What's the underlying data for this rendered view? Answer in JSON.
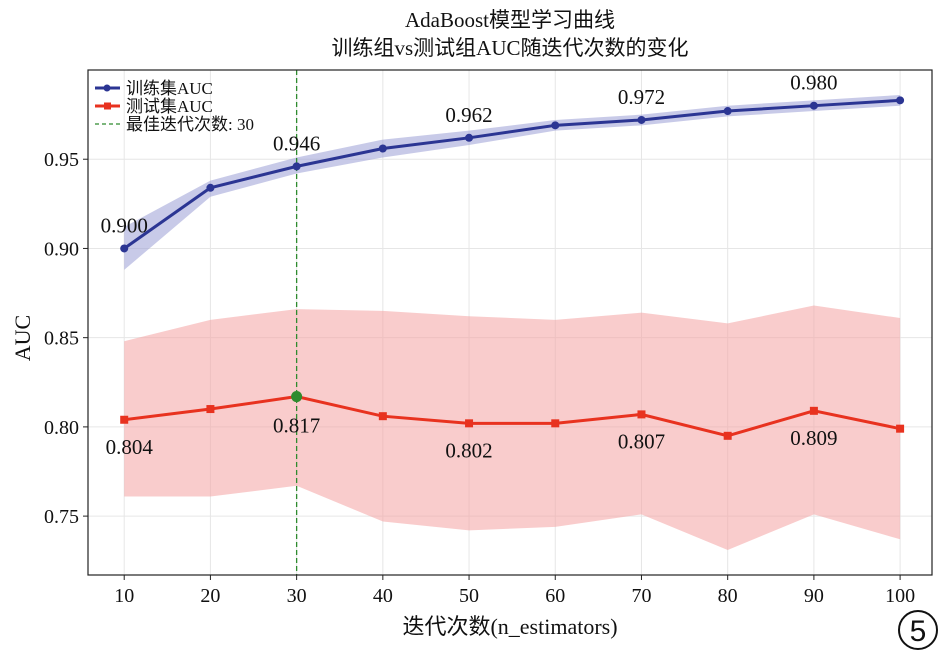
{
  "chart_data": {
    "type": "line",
    "title": "AdaBoost模型学习曲线",
    "subtitle": "训练组vs测试组AUC随迭代次数的变化",
    "xlabel": "迭代次数(n_estimators)",
    "ylabel": "AUC",
    "xlim": [
      5.8,
      103.7
    ],
    "ylim": [
      0.717,
      1.0
    ],
    "xticks": [
      10,
      20,
      30,
      40,
      50,
      60,
      70,
      80,
      90,
      100
    ],
    "yticks": [
      0.75,
      0.8,
      0.85,
      0.9,
      0.95
    ],
    "ytick_labels": [
      "0.75",
      "0.80",
      "0.85",
      "0.90",
      "0.95"
    ],
    "grid": true,
    "legend_position": "top-left",
    "x": [
      10,
      20,
      30,
      40,
      50,
      60,
      70,
      80,
      90,
      100
    ],
    "series": [
      {
        "name": "训练集AUC",
        "color": "#2b3593",
        "band_color": "#9a9fd6",
        "marker": "circle",
        "values": [
          0.9,
          0.934,
          0.946,
          0.956,
          0.962,
          0.969,
          0.972,
          0.977,
          0.98,
          0.983
        ],
        "upper": [
          0.912,
          0.938,
          0.951,
          0.961,
          0.966,
          0.972,
          0.975,
          0.98,
          0.983,
          0.986
        ],
        "lower": [
          0.888,
          0.929,
          0.942,
          0.951,
          0.958,
          0.966,
          0.969,
          0.974,
          0.977,
          0.98
        ],
        "labels": [
          {
            "x": 10,
            "text": "0.900"
          },
          {
            "x": 30,
            "text": "0.946"
          },
          {
            "x": 50,
            "text": "0.962"
          },
          {
            "x": 70,
            "text": "0.972"
          },
          {
            "x": 90,
            "text": "0.980"
          }
        ]
      },
      {
        "name": "测试集AUC",
        "color": "#e8321f",
        "band_color": "#f4a3a3",
        "marker": "square",
        "values": [
          0.804,
          0.81,
          0.817,
          0.806,
          0.802,
          0.802,
          0.807,
          0.795,
          0.809,
          0.799
        ],
        "upper": [
          0.848,
          0.86,
          0.866,
          0.865,
          0.862,
          0.86,
          0.864,
          0.858,
          0.868,
          0.861
        ],
        "lower": [
          0.761,
          0.761,
          0.767,
          0.747,
          0.742,
          0.744,
          0.751,
          0.731,
          0.751,
          0.737
        ],
        "labels": [
          {
            "x": 10,
            "text": "0.804"
          },
          {
            "x": 30,
            "text": "0.817"
          },
          {
            "x": 50,
            "text": "0.802"
          },
          {
            "x": 70,
            "text": "0.807"
          },
          {
            "x": 90,
            "text": "0.809"
          }
        ]
      }
    ],
    "best": {
      "x": 30,
      "y": 0.817,
      "label": "最佳迭代次数: 30",
      "color": "#2e8b2e"
    },
    "annotation": "5"
  }
}
